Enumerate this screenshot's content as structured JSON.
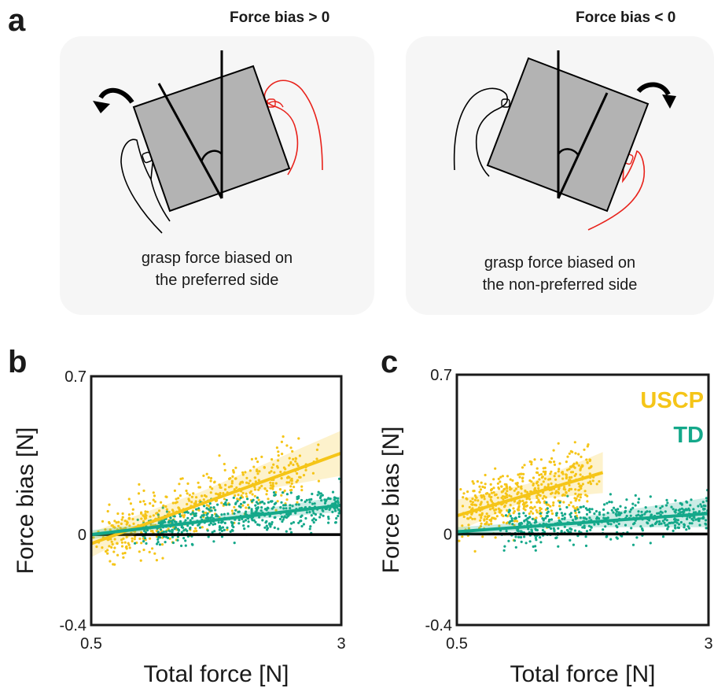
{
  "panel_a": {
    "letter": "a",
    "left": {
      "title": "Force bias > 0",
      "caption_line1": "grasp force biased on",
      "caption_line2": "the preferred side"
    },
    "right": {
      "title": "Force bias < 0",
      "caption_line1": "grasp force biased on",
      "caption_line2": "the non-preferred side"
    }
  },
  "colors": {
    "uscp": "#f5c518",
    "td": "#14a88a",
    "zero_line": "#000000",
    "preferred_hand": "#e8221b",
    "box": "#b3b3b3"
  },
  "chart_data": [
    {
      "id": "b",
      "letter": "b",
      "type": "scatter",
      "ylabel": "Force bias [N]",
      "xlabel": "Total force [N]",
      "xlim": [
        0.5,
        3
      ],
      "ylim": [
        -0.4,
        0.7
      ],
      "x_ticks": [
        "0.5",
        "3"
      ],
      "y_ticks": [
        "0.7",
        "0",
        "-0.4"
      ],
      "y_tick_values": [
        0.7,
        0,
        -0.4
      ],
      "legend": [],
      "series": [
        {
          "name": "",
          "color": "uscp",
          "x_range": [
            0.5,
            3
          ],
          "fit": {
            "x": [
              0.5,
              3
            ],
            "y": [
              -0.04,
              0.36
            ]
          },
          "ci": {
            "x": [
              0.5,
              1.6,
              3
            ],
            "lo": [
              -0.1,
              0.15,
              0.26
            ],
            "hi": [
              0.01,
              0.19,
              0.46
            ]
          }
        },
        {
          "name": "",
          "color": "td",
          "x_range": [
            0.5,
            3
          ],
          "fit": {
            "x": [
              0.5,
              3
            ],
            "y": [
              0.0,
              0.13
            ]
          },
          "ci": {
            "x": [
              0.5,
              1.6,
              3
            ],
            "lo": [
              -0.02,
              0.05,
              0.1
            ],
            "hi": [
              0.02,
              0.07,
              0.17
            ]
          }
        }
      ]
    },
    {
      "id": "c",
      "letter": "c",
      "type": "scatter",
      "ylabel": "Force bias [N]",
      "xlabel": "Total force [N]",
      "xlim": [
        0.5,
        3
      ],
      "ylim": [
        -0.4,
        0.7
      ],
      "x_ticks": [
        "0.5",
        "3"
      ],
      "y_ticks": [
        "0.7",
        "0",
        "-0.4"
      ],
      "y_tick_values": [
        0.7,
        0,
        -0.4
      ],
      "legend": [
        "USCP",
        "TD"
      ],
      "series": [
        {
          "name": "USCP",
          "color": "uscp",
          "x_range": [
            0.5,
            1.95
          ],
          "fit": {
            "x": [
              0.5,
              1.95
            ],
            "y": [
              0.08,
              0.27
            ]
          },
          "ci": {
            "x": [
              0.5,
              1.2,
              1.95
            ],
            "lo": [
              0.01,
              0.15,
              0.18
            ],
            "hi": [
              0.15,
              0.22,
              0.36
            ]
          }
        },
        {
          "name": "TD",
          "color": "td",
          "x_range": [
            0.5,
            3
          ],
          "fit": {
            "x": [
              0.5,
              3
            ],
            "y": [
              0.01,
              0.09
            ]
          },
          "ci": {
            "x": [
              0.5,
              1.5,
              3
            ],
            "lo": [
              -0.01,
              0.03,
              0.03
            ],
            "hi": [
              0.03,
              0.06,
              0.16
            ]
          }
        }
      ]
    }
  ]
}
